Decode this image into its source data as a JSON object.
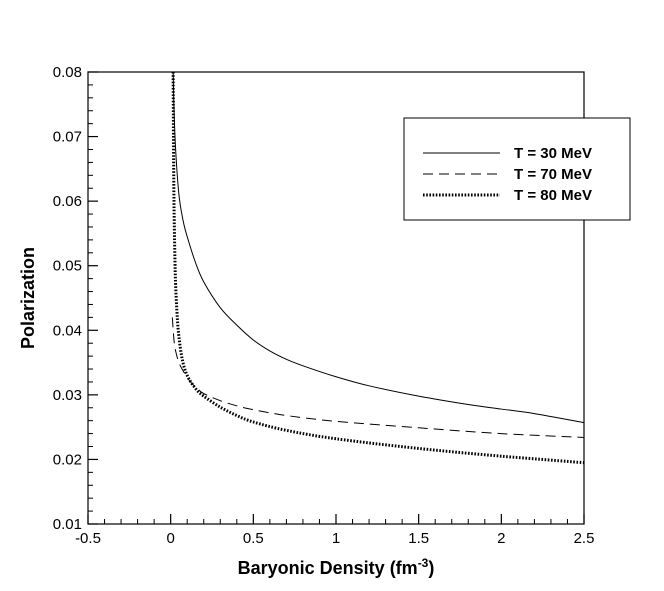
{
  "chart_data": {
    "type": "line",
    "xlabel": "Baryonic Density (fm",
    "xlabel_sup": "-3",
    "xlabel_close": ")",
    "ylabel": "Polarization",
    "xlim": [
      -0.5,
      2.5
    ],
    "ylim": [
      0.01,
      0.08
    ],
    "x_ticks": [
      -0.5,
      0,
      0.5,
      1,
      1.5,
      2,
      2.5
    ],
    "x_tick_labels": [
      "-0.5",
      "0",
      "0.5",
      "1",
      "1.5",
      "2",
      "2.5"
    ],
    "y_ticks": [
      0.01,
      0.02,
      0.03,
      0.04,
      0.05,
      0.06,
      0.07,
      0.08
    ],
    "y_tick_labels": [
      "0.01",
      "0.02",
      "0.03",
      "0.04",
      "0.05",
      "0.06",
      "0.07",
      "0.08"
    ],
    "grid": false,
    "legend_position": "top-right",
    "series": [
      {
        "name": "T = 30 MeV",
        "style": "solid",
        "color": "#000000",
        "x": [
          0.015,
          0.02,
          0.03,
          0.05,
          0.075,
          0.1,
          0.15,
          0.2,
          0.3,
          0.4,
          0.5,
          0.6,
          0.7,
          0.8,
          1.0,
          1.2,
          1.5,
          1.8,
          2.0,
          2.2,
          2.5
        ],
        "y": [
          0.08,
          0.0745,
          0.068,
          0.061,
          0.057,
          0.0545,
          0.0505,
          0.0475,
          0.0435,
          0.0408,
          0.0385,
          0.0368,
          0.0355,
          0.0345,
          0.0328,
          0.0314,
          0.0298,
          0.0285,
          0.0278,
          0.0271,
          0.0257
        ]
      },
      {
        "name": "T = 70 MeV",
        "style": "dashed",
        "color": "#000000",
        "x": [
          0.01,
          0.02,
          0.03,
          0.05,
          0.08,
          0.12,
          0.16,
          0.2,
          0.3,
          0.4,
          0.5,
          0.7,
          1.0,
          1.5,
          2.0,
          2.5
        ],
        "y": [
          0.042,
          0.0385,
          0.0368,
          0.035,
          0.0335,
          0.032,
          0.031,
          0.0302,
          0.0291,
          0.0283,
          0.0277,
          0.0268,
          0.0259,
          0.0249,
          0.024,
          0.0234
        ]
      },
      {
        "name": "T = 80 MeV",
        "style": "dotted",
        "color": "#000000",
        "x": [
          0.015,
          0.017,
          0.02,
          0.025,
          0.03,
          0.04,
          0.05,
          0.07,
          0.1,
          0.15,
          0.2,
          0.3,
          0.4,
          0.5,
          0.7,
          1.0,
          1.5,
          2.0,
          2.5
        ],
        "y": [
          0.08,
          0.07,
          0.06,
          0.052,
          0.047,
          0.042,
          0.039,
          0.0355,
          0.033,
          0.031,
          0.0298,
          0.0281,
          0.0268,
          0.0258,
          0.0245,
          0.0232,
          0.0217,
          0.0205,
          0.0195
        ]
      }
    ]
  }
}
